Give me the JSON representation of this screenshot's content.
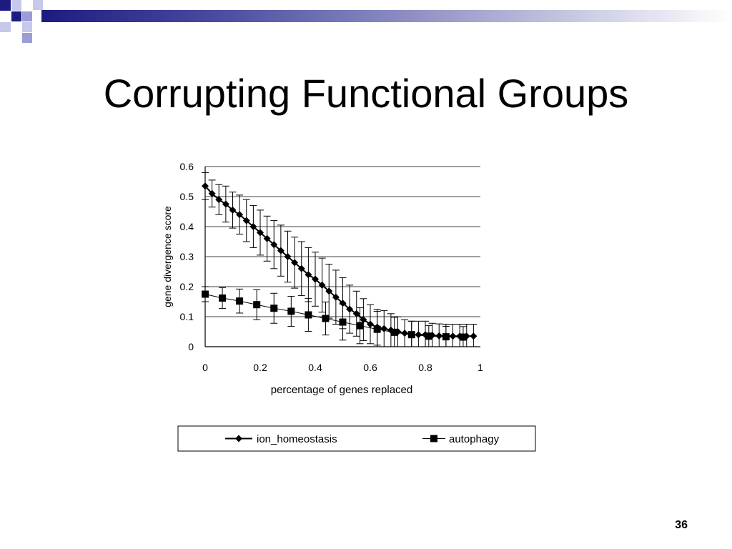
{
  "slide": {
    "title": "Corrupting Functional Groups",
    "number": "36"
  },
  "colors": {
    "accent_dark": "#1c1c80",
    "accent_light": "#9c9cd6",
    "text": "#000000"
  },
  "chart_data": {
    "type": "line",
    "xlabel": "percentage of genes replaced",
    "ylabel": "gene divergence score",
    "xlim": [
      0,
      1
    ],
    "ylim": [
      0,
      0.6
    ],
    "x_ticks": [
      0,
      0.2,
      0.4,
      0.6,
      0.8,
      1
    ],
    "x_tick_labels": [
      "0",
      "0.2",
      "0.4",
      "0.6",
      "0.8",
      "1"
    ],
    "y_ticks": [
      0,
      0.1,
      0.2,
      0.3,
      0.4,
      0.5,
      0.6
    ],
    "y_tick_labels": [
      "0",
      "0.1",
      "0.2",
      "0.3",
      "0.4",
      "0.5",
      "0.6"
    ],
    "grid": "horizontal",
    "legend_position": "bottom",
    "series": [
      {
        "name": "ion_homeostasis",
        "marker": "diamond",
        "x": [
          0,
          0.025,
          0.05,
          0.075,
          0.1,
          0.125,
          0.15,
          0.175,
          0.2,
          0.225,
          0.25,
          0.275,
          0.3,
          0.325,
          0.35,
          0.375,
          0.4,
          0.425,
          0.45,
          0.475,
          0.5,
          0.525,
          0.55,
          0.575,
          0.6,
          0.625,
          0.65,
          0.675,
          0.7,
          0.725,
          0.75,
          0.775,
          0.8,
          0.825,
          0.85,
          0.875,
          0.9,
          0.925,
          0.95,
          0.975
        ],
        "y": [
          0.535,
          0.51,
          0.49,
          0.475,
          0.455,
          0.44,
          0.42,
          0.4,
          0.38,
          0.36,
          0.34,
          0.32,
          0.3,
          0.28,
          0.26,
          0.24,
          0.225,
          0.205,
          0.185,
          0.165,
          0.145,
          0.125,
          0.11,
          0.09,
          0.075,
          0.065,
          0.06,
          0.055,
          0.05,
          0.045,
          0.04,
          0.04,
          0.04,
          0.038,
          0.036,
          0.035,
          0.035,
          0.035,
          0.035,
          0.035
        ],
        "error": [
          0.045,
          0.045,
          0.05,
          0.06,
          0.06,
          0.065,
          0.07,
          0.07,
          0.075,
          0.075,
          0.08,
          0.085,
          0.085,
          0.085,
          0.09,
          0.09,
          0.09,
          0.09,
          0.09,
          0.09,
          0.085,
          0.08,
          0.075,
          0.07,
          0.065,
          0.06,
          0.06,
          0.055,
          0.05,
          0.045,
          0.045,
          0.045,
          0.045,
          0.04,
          0.04,
          0.04,
          0.04,
          0.04,
          0.04,
          0.04
        ]
      },
      {
        "name": "autophagy",
        "marker": "square",
        "x": [
          0,
          0.0625,
          0.125,
          0.1875,
          0.25,
          0.3125,
          0.375,
          0.4375,
          0.5,
          0.5625,
          0.625,
          0.6875,
          0.75,
          0.8125,
          0.875,
          0.9375
        ],
        "y": [
          0.175,
          0.162,
          0.152,
          0.14,
          0.128,
          0.118,
          0.106,
          0.094,
          0.082,
          0.07,
          0.058,
          0.048,
          0.04,
          0.035,
          0.033,
          0.032
        ],
        "error": [
          0.025,
          0.035,
          0.04,
          0.05,
          0.05,
          0.05,
          0.055,
          0.055,
          0.06,
          0.06,
          0.06,
          0.05,
          0.045,
          0.035,
          0.035,
          0.035
        ]
      }
    ]
  }
}
